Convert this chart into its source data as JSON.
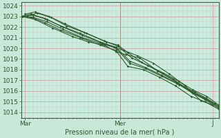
{
  "title": "Pression niveau de la mer( hPa )",
  "ylim": [
    1013.5,
    1024.3
  ],
  "xlim": [
    0,
    1.0
  ],
  "xtick_positions": [
    0.02,
    0.5,
    0.97
  ],
  "xtick_labels": [
    "Mar",
    "Mer",
    "J"
  ],
  "bg_color": "#c8e8d8",
  "plot_bg_color": "#c8eee0",
  "grid_major_color": "#cc9999",
  "grid_minor_color": "#ddbbbb",
  "line_color": "#2d5a2d",
  "marker": "D",
  "markersize": 1.8,
  "linewidth": 0.8,
  "title_fontsize": 7,
  "tick_fontsize": 6.5,
  "lines": [
    {
      "x": [
        0.0,
        0.05,
        0.12,
        0.2,
        0.3,
        0.4,
        0.48,
        0.54,
        0.62,
        0.7,
        0.78,
        0.86,
        0.93,
        1.0
      ],
      "y": [
        1023.0,
        1022.9,
        1022.4,
        1021.7,
        1021.0,
        1020.3,
        1019.8,
        1018.3,
        1018.0,
        1017.3,
        1016.5,
        1015.5,
        1015.0,
        1014.3
      ]
    },
    {
      "x": [
        0.0,
        0.05,
        0.12,
        0.2,
        0.3,
        0.4,
        0.48,
        0.55,
        0.63,
        0.71,
        0.79,
        0.87,
        0.93,
        1.0
      ],
      "y": [
        1023.0,
        1023.2,
        1022.8,
        1022.1,
        1021.4,
        1020.6,
        1020.1,
        1018.8,
        1018.2,
        1017.5,
        1016.7,
        1015.8,
        1015.3,
        1014.5
      ]
    },
    {
      "x": [
        0.02,
        0.07,
        0.14,
        0.22,
        0.32,
        0.42,
        0.49,
        0.56,
        0.64,
        0.72,
        0.8,
        0.87,
        0.94,
        1.0
      ],
      "y": [
        1023.2,
        1023.4,
        1023.0,
        1022.3,
        1021.5,
        1020.7,
        1020.2,
        1019.1,
        1018.4,
        1017.7,
        1016.9,
        1016.1,
        1015.5,
        1014.7
      ]
    },
    {
      "x": [
        0.03,
        0.08,
        0.15,
        0.23,
        0.33,
        0.43,
        0.49,
        0.54,
        0.61,
        0.69,
        0.77,
        0.85,
        0.92,
        0.98
      ],
      "y": [
        1023.0,
        1023.3,
        1022.9,
        1022.1,
        1021.4,
        1020.6,
        1020.3,
        1019.6,
        1018.7,
        1017.9,
        1017.1,
        1016.1,
        1015.4,
        1014.8
      ]
    },
    {
      "x": [
        0.0,
        0.06,
        0.13,
        0.21,
        0.31,
        0.41,
        0.47,
        0.52,
        0.59,
        0.67,
        0.75,
        0.83,
        0.91,
        0.97
      ],
      "y": [
        1023.0,
        1022.9,
        1022.5,
        1021.8,
        1021.0,
        1020.4,
        1020.1,
        1019.8,
        1019.3,
        1018.6,
        1017.6,
        1016.5,
        1015.1,
        1014.7
      ]
    },
    {
      "x": [
        0.01,
        0.06,
        0.13,
        0.21,
        0.31,
        0.41,
        0.48,
        0.55,
        0.63,
        0.71,
        0.8,
        0.88,
        0.94,
        1.0
      ],
      "y": [
        1023.0,
        1023.1,
        1022.7,
        1022.0,
        1021.2,
        1020.5,
        1020.0,
        1018.6,
        1018.1,
        1017.4,
        1016.6,
        1015.9,
        1015.3,
        1014.6
      ]
    },
    {
      "x": [
        0.0,
        0.07,
        0.16,
        0.26,
        0.34,
        0.42,
        0.48,
        0.53,
        0.6,
        0.69,
        0.78,
        0.86,
        0.93,
        1.0
      ],
      "y": [
        1023.0,
        1022.7,
        1021.9,
        1021.1,
        1020.6,
        1020.3,
        1019.7,
        1019.4,
        1019.1,
        1017.9,
        1016.9,
        1015.9,
        1015.2,
        1014.4
      ]
    }
  ]
}
